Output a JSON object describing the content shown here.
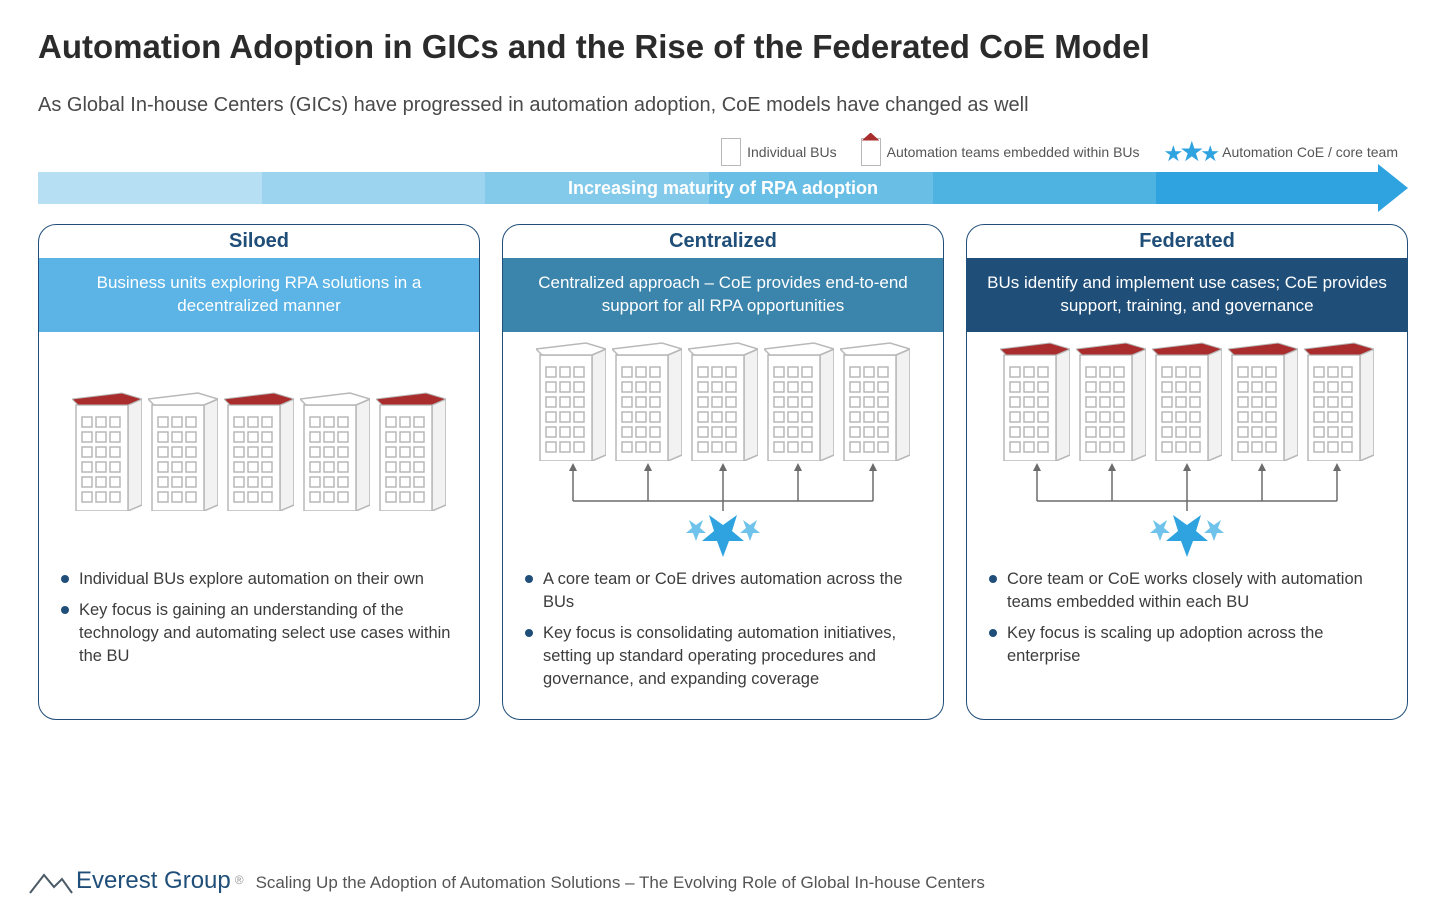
{
  "title": "Automation Adoption in GICs and the Rise of the Federated CoE Model",
  "subtitle": "As Global In-house Centers (GICs) have progressed in automation adoption, CoE models have changed as well",
  "legend": {
    "individual": "Individual BUs",
    "embedded": "Automation teams embedded within BUs",
    "coe": "Automation CoE / core team"
  },
  "arrow": {
    "label": "Increasing maturity of RPA adoption",
    "gradient_colors": [
      "#b6dff4",
      "#9cd4ef",
      "#82c9ea",
      "#68bee5",
      "#4eb3e0",
      "#2ea3e0"
    ],
    "head_color": "#2ea3e0",
    "text_color": "#ffffff"
  },
  "colors": {
    "card_border": "#1f4e79",
    "building_stroke": "#b8b8b8",
    "building_roof_red": "#a92d2d",
    "star_fill": "#2ea3e0",
    "star_outline": "#6fc3ea",
    "arrow_gray": "#6b6b6b",
    "text_dark": "#2b2b2b",
    "text_body": "#3c3c3c",
    "bullet_color": "#1f4e79"
  },
  "cards": [
    {
      "id": "siloed",
      "title": "Siloed",
      "desc_bg": "#5bb4e5",
      "desc": "Business units exploring RPA solutions in a decentralized manner",
      "buildings_red": [
        true,
        false,
        true,
        false,
        true
      ],
      "show_arrows": false,
      "show_star": false,
      "bullets": [
        "Individual BUs explore automation on their own",
        "Key focus is gaining an understanding of the technology and automating select use cases within the BU"
      ]
    },
    {
      "id": "centralized",
      "title": "Centralized",
      "desc_bg": "#3b84ac",
      "desc": "Centralized approach – CoE provides end-to-end support for all RPA opportunities",
      "buildings_red": [
        false,
        false,
        false,
        false,
        false
      ],
      "show_arrows": true,
      "show_star": true,
      "bullets": [
        "A core team or CoE drives automation across the BUs",
        "Key focus is consolidating automation initiatives, setting up standard operating procedures and governance, and expanding coverage"
      ]
    },
    {
      "id": "federated",
      "title": "Federated",
      "desc_bg": "#1f4e79",
      "desc": "BUs identify and implement use cases; CoE provides support, training, and governance",
      "buildings_red": [
        true,
        true,
        true,
        true,
        true
      ],
      "show_arrows": true,
      "show_star": true,
      "bullets": [
        "Core team or CoE works closely with automation teams embedded within each BU",
        "Key focus is scaling up adoption across the enterprise"
      ]
    }
  ],
  "footer": {
    "brand": "Everest Group",
    "text": "Scaling Up the Adoption of Automation Solutions – The Evolving Role of Global In-house Centers"
  },
  "building_svg": {
    "width": 70,
    "height": 120,
    "roof_h": 14
  }
}
